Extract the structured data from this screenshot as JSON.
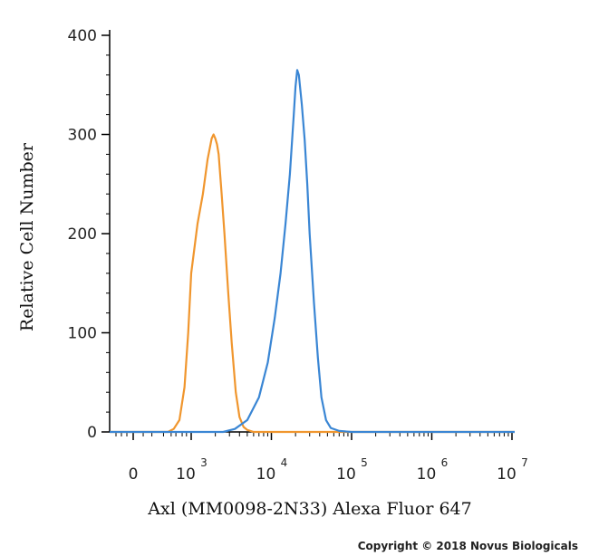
{
  "chart_data": {
    "type": "line",
    "xlabel": "Axl (MM0098-2N33) Alexa Fluor 647",
    "ylabel": "Relative Cell Number",
    "xscale": "biexponential-log",
    "ylim": [
      0,
      400
    ],
    "yticks": [
      0,
      100,
      200,
      300,
      400
    ],
    "xticks": [
      {
        "value": 0,
        "base": "0",
        "exp": ""
      },
      {
        "value": 1000,
        "base": "10",
        "exp": "3"
      },
      {
        "value": 10000,
        "base": "10",
        "exp": "4"
      },
      {
        "value": 100000,
        "base": "10",
        "exp": "5"
      },
      {
        "value": 1000000,
        "base": "10",
        "exp": "6"
      },
      {
        "value": 10000000,
        "base": "10",
        "exp": "7"
      }
    ],
    "grid": false,
    "series": [
      {
        "color": "#f0962e",
        "x": [
          150,
          250,
          400,
          600,
          800,
          1000,
          1200,
          1400,
          1600,
          1800,
          1900,
          2000,
          2100,
          2200,
          2400,
          2600,
          2900,
          3200,
          3600,
          4000,
          4500,
          5000,
          6000
        ],
        "y": [
          0,
          3,
          12,
          45,
          100,
          160,
          210,
          240,
          275,
          296,
          300,
          296,
          290,
          280,
          240,
          200,
          140,
          90,
          40,
          15,
          5,
          2,
          0
        ]
      },
      {
        "color": "#3a86d4",
        "x": [
          2500,
          3500,
          5000,
          7000,
          9000,
          11000,
          13000,
          15000,
          17000,
          19000,
          20000,
          21000,
          22000,
          24000,
          26000,
          28000,
          30000,
          34000,
          38000,
          42000,
          48000,
          55000,
          70000,
          100000,
          10000000
        ],
        "y": [
          0,
          3,
          12,
          35,
          70,
          115,
          160,
          210,
          260,
          320,
          348,
          365,
          360,
          330,
          295,
          250,
          200,
          130,
          75,
          35,
          12,
          4,
          1,
          0,
          0
        ]
      }
    ]
  },
  "copyright": "Copyright © 2018 Novus Biologicals"
}
